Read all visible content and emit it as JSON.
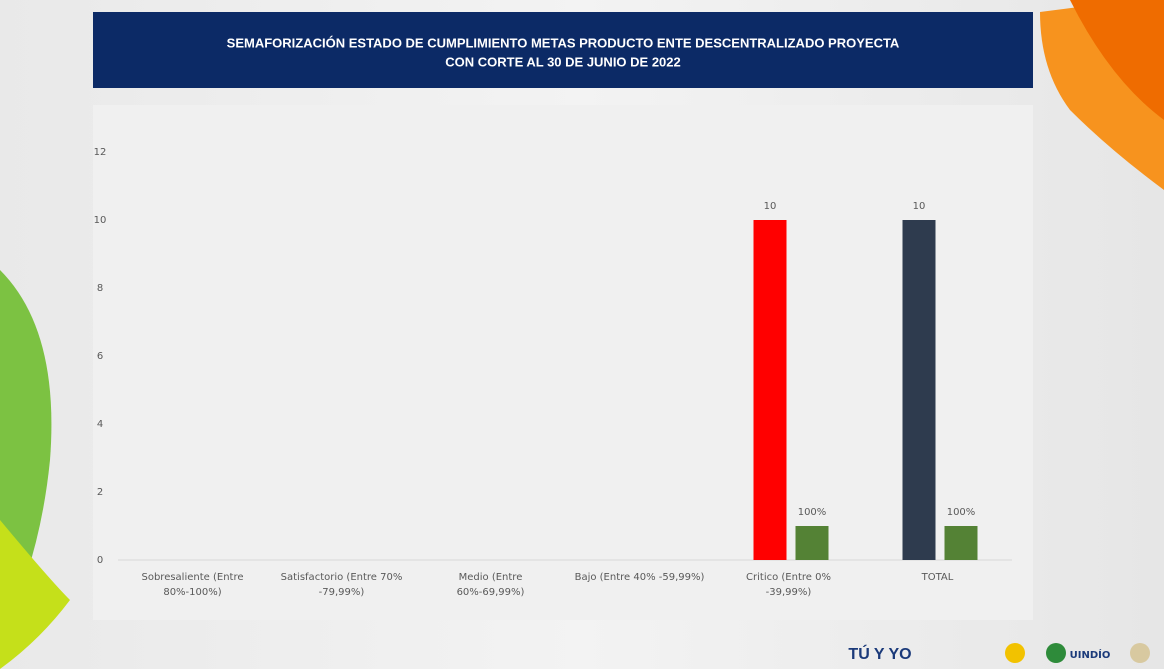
{
  "chart_data": {
    "type": "bar",
    "title": [
      "SEMAFORIZACIÓN  ESTADO DE CUMPLIMIENTO METAS PRODUCTO  ENTE DESCENTRALIZADO PROYECTA",
      "CON CORTE AL 30 DE JUNIO DE 2022"
    ],
    "categories": [
      "Sobresaliente  (Entre 80%-100%)",
      "Satisfactorio (Entre 70% -79,99%)",
      "Medio (Entre 60%-69,99%)",
      "Bajo (Entre 40% -59,99%)",
      "Critico (Entre 0% -39,99%)",
      "TOTAL"
    ],
    "series": [
      {
        "colors": [
          "#ff0000",
          "#ff0000",
          "#ff0000",
          "#ff0000",
          "#ff0000",
          "#2e3b4e"
        ],
        "values": [
          null,
          null,
          null,
          null,
          10,
          10
        ]
      },
      {
        "color": "#548235",
        "values": [
          null,
          null,
          null,
          null,
          1,
          1
        ],
        "value_labels": [
          null,
          null,
          null,
          null,
          "100%",
          "100%"
        ]
      }
    ],
    "ylim": [
      0,
      12
    ],
    "yticks": [
      0,
      2,
      4,
      6,
      8,
      10,
      12
    ],
    "grid": false
  },
  "footer": {
    "logos": [
      "TÚ Y YO",
      "UINDÍO"
    ]
  }
}
